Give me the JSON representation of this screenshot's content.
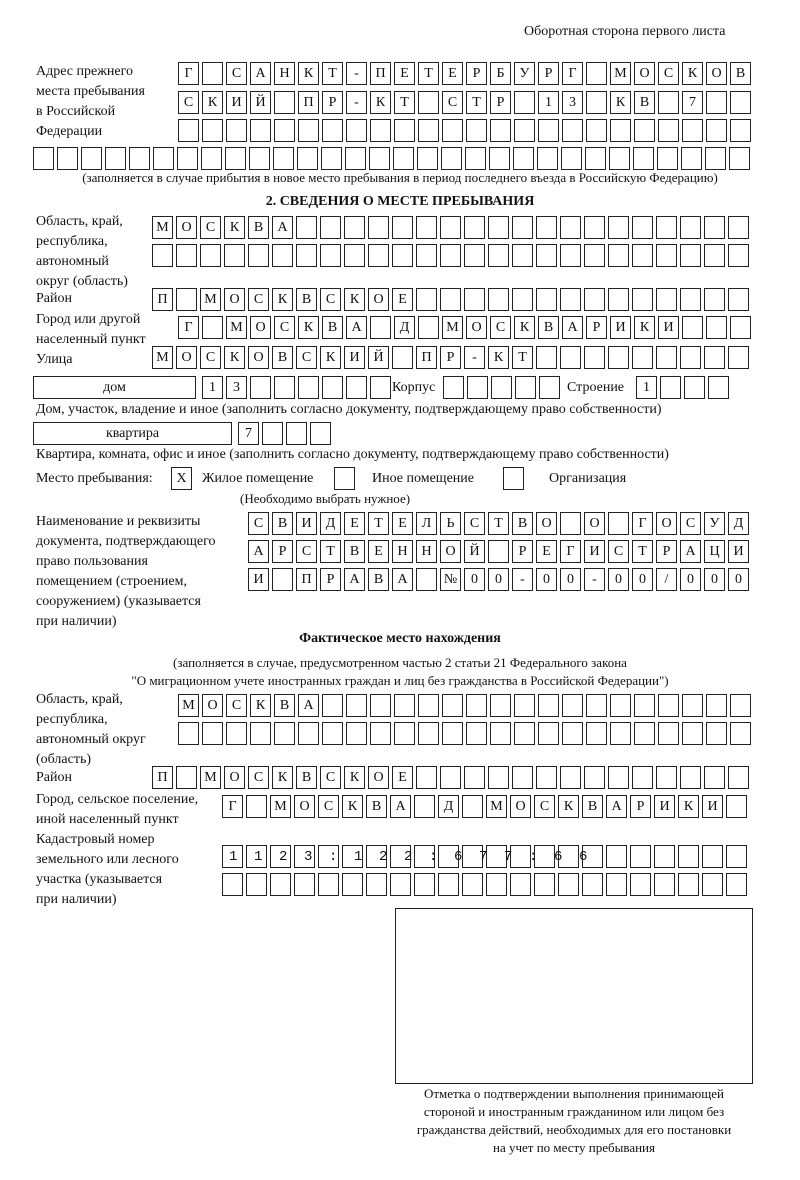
{
  "header": "Оборотная сторона первого листа",
  "prev_address": {
    "label": [
      "Адрес прежнего",
      "места пребывания",
      "в Российской",
      "Федерации"
    ],
    "rows": [
      "Г САНКТ-ПЕТЕРБУРГ МОСКОВ",
      "СКИЙ ПР-КТ СТР 13 КВ 7",
      "",
      ""
    ],
    "note": "(заполняется в случае прибытия в новое место пребывания в период последнего въезда в Российскую Федерацию)"
  },
  "section2": {
    "title": "2. СВЕДЕНИЯ О МЕСТЕ ПРЕБЫВАНИЯ",
    "region_label": [
      "Область, край,",
      "республика,",
      "автономный",
      "округ (область)"
    ],
    "region_rows": [
      "МОСКВА",
      ""
    ],
    "district_label": "Район",
    "district": "П МОСКВСКОЕ",
    "city_label": [
      "Город или другой",
      "населенный пункт"
    ],
    "city": "Г МОСКВА Д МОСКВАРИКИ",
    "street_label": "Улица",
    "street": "МОСКОВСКИЙ ПР-КТ",
    "house_type": "дом",
    "house": "13",
    "korpus_label": "Корпус",
    "korpus": "",
    "building_label": "Строение",
    "building": "1",
    "house_note": "Дом, участок, владение и иное (заполнить согласно документу, подтверждающему право собственности)",
    "apt_type": "квартира",
    "apt": "7",
    "apt_note": "Квартира, комната, офис и иное (заполнить согласно документу, подтверждающему право собственности)",
    "stay_label": "Место пребывания:",
    "stay_options": [
      {
        "label": "Жилое помещение",
        "mark": "X"
      },
      {
        "label": "Иное помещение",
        "mark": ""
      },
      {
        "label": "Организация",
        "mark": ""
      }
    ],
    "stay_note": "(Необходимо выбрать нужное)",
    "doc_label": [
      "Наименование и реквизиты",
      "документа, подтверждающего",
      "право пользования",
      "помещением (строением,",
      "сооружением) (указывается",
      "при наличии)"
    ],
    "doc_rows": [
      "СВИДЕТЕЛЬСТВО О ГОСУД",
      "АРСТВЕННОЙ РЕГИСТРАЦИ",
      "И ПРАВА №00-00-00/000"
    ]
  },
  "actual": {
    "title": "Фактическое место нахождения",
    "note1": "(заполняется в случае, предусмотренном частью 2 статьи 21 Федерального закона",
    "note2": "\"О миграционном учете иностранных граждан и лиц без гражданства в Российской Федерации\")",
    "region_label": [
      "Область, край,",
      "республика,",
      "автономный округ",
      "(область)"
    ],
    "region_rows": [
      "МОСКВА",
      ""
    ],
    "district_label": "Район",
    "district": "П МОСКВСКОЕ",
    "city_label": [
      "Город, сельское поселение,",
      "иной населенный пункт"
    ],
    "city": "Г МОСКВА Д МОСКВАРИКИ",
    "cadastral_label": [
      "Кадастровый номер",
      "земельного или лесного",
      "участка (указывается",
      "при наличии)"
    ],
    "cadastral_rows": [
      "1123:122:677:66",
      ""
    ]
  },
  "stamp_caption": [
    "Отметка о подтверждении выполнения принимающей",
    "стороной и иностранным гражданином или лицом без",
    "гражданства действий, необходимых для его постановки",
    "на учет по месту пребывания"
  ]
}
